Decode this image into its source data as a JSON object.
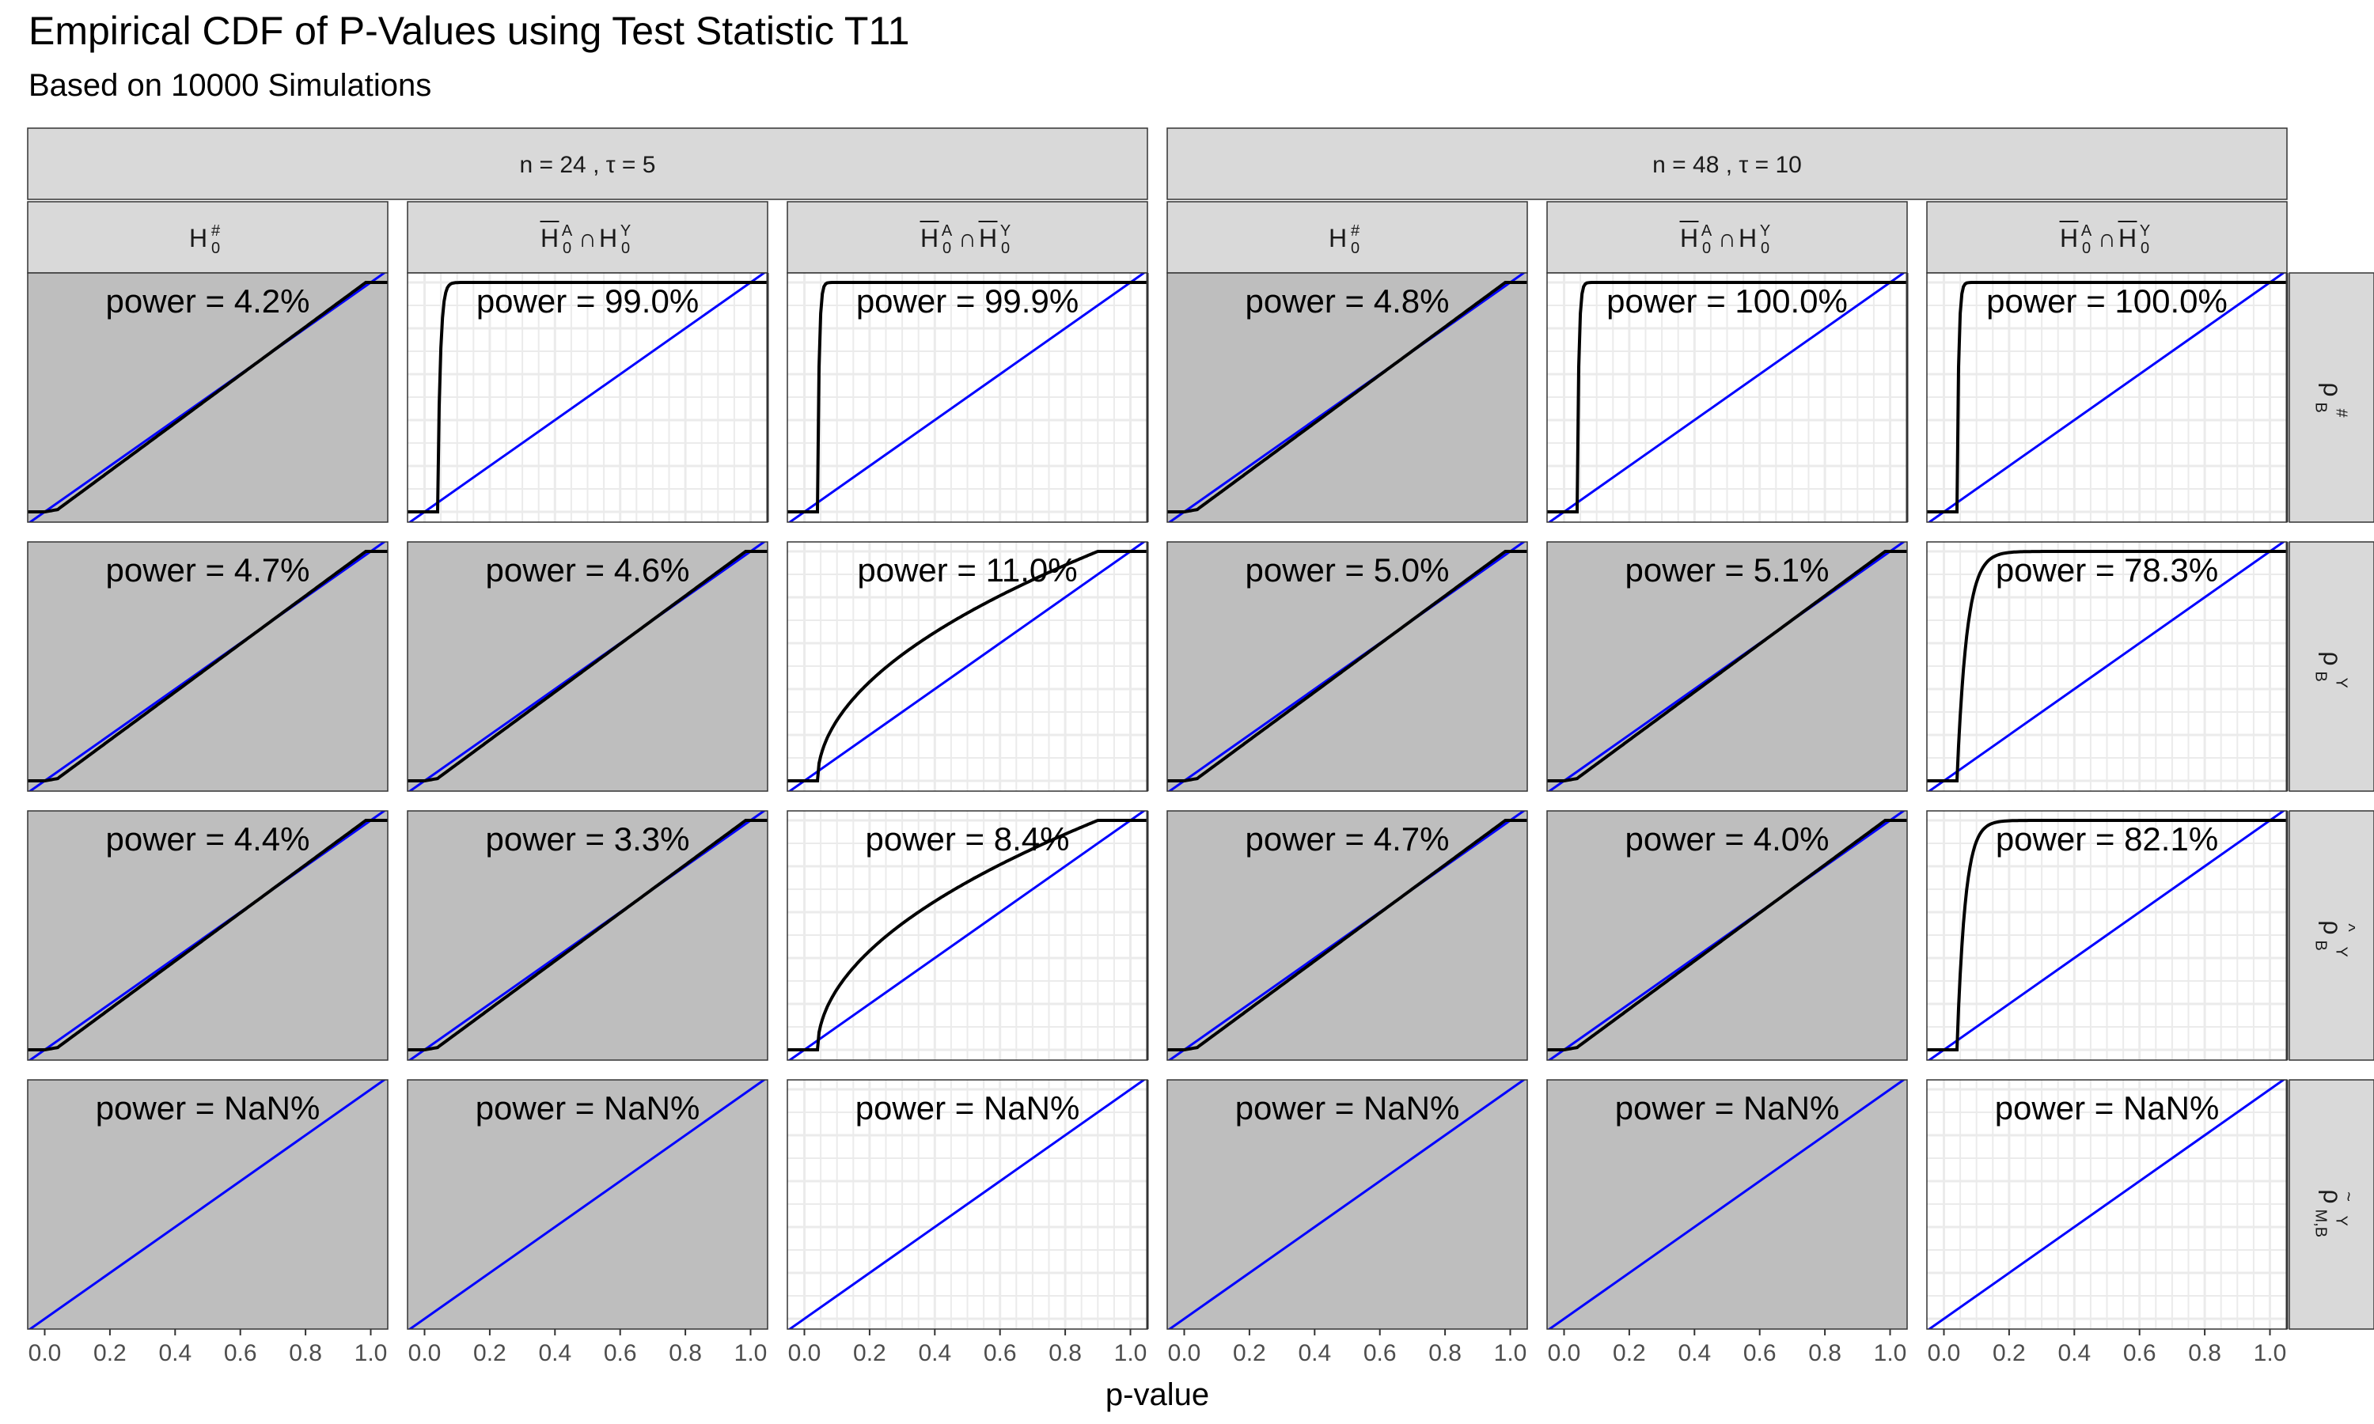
{
  "title": "Empirical CDF of P-Values using Test Statistic T11",
  "subtitle": "Based on 10000 Simulations",
  "colors": {
    "null_panel_bg": "#bebebe",
    "alt_panel_bg": "#ffffff",
    "grid": "#ebebeb",
    "strip_bg": "#d9d9d9",
    "ecdf_line": "#000000",
    "reference_line": "#0000ff"
  },
  "chart_data": {
    "type": "line",
    "xlabel": "p-value",
    "ylabel": "",
    "xlim": [
      0,
      1
    ],
    "ylim": [
      0,
      1
    ],
    "x_ticks": [
      "0.0",
      "0.2",
      "0.4",
      "0.6",
      "0.8",
      "1.0"
    ],
    "reference_line": "y = x",
    "outer_columns": [
      {
        "label": "n = 24 , τ = 5"
      },
      {
        "label": "n = 48 , τ = 10"
      }
    ],
    "hypothesis_columns": [
      {
        "label": "H",
        "hat": false,
        "sup": "#",
        "sub": "0"
      },
      {
        "label": "HA0∩HY0",
        "overlines": [
          "A"
        ]
      },
      {
        "label": "HA0∩HY0",
        "overlines": [
          "A",
          "Y"
        ]
      }
    ],
    "rows": [
      {
        "label": "ρ",
        "sub": "B",
        "sup": "#",
        "accent": ""
      },
      {
        "label": "ρ",
        "sub": "B",
        "sup": "Y",
        "accent": ""
      },
      {
        "label": "ρ",
        "sub": "B",
        "sup": "Y",
        "accent": "^"
      },
      {
        "label": "ρ",
        "sub": "M,B",
        "sup": "Y",
        "accent": "~"
      }
    ],
    "panels": [
      {
        "row": 0,
        "col": 0,
        "shaded": true,
        "power": "power = 4.2%",
        "shape": "null",
        "k": 0.042
      },
      {
        "row": 0,
        "col": 1,
        "shaded": false,
        "power": "power = 99.0%",
        "shape": "steep",
        "k": 0.008
      },
      {
        "row": 0,
        "col": 2,
        "shaded": false,
        "power": "power = 99.9%",
        "shape": "steep",
        "k": 0.005
      },
      {
        "row": 0,
        "col": 3,
        "shaded": true,
        "power": "power = 4.8%",
        "shape": "null",
        "k": 0.048
      },
      {
        "row": 0,
        "col": 4,
        "shaded": false,
        "power": "power = 100.0%",
        "shape": "steep",
        "k": 0.005
      },
      {
        "row": 0,
        "col": 5,
        "shaded": false,
        "power": "power = 100.0%",
        "shape": "steep",
        "k": 0.005
      },
      {
        "row": 1,
        "col": 0,
        "shaded": true,
        "power": "power = 4.7%",
        "shape": "null",
        "k": 0.047
      },
      {
        "row": 1,
        "col": 1,
        "shaded": true,
        "power": "power = 4.6%",
        "shape": "null",
        "k": 0.046
      },
      {
        "row": 1,
        "col": 2,
        "shaded": false,
        "power": "power = 11.0%",
        "shape": "curve",
        "k": 0.45
      },
      {
        "row": 1,
        "col": 3,
        "shaded": true,
        "power": "power = 5.0%",
        "shape": "null",
        "k": 0.05
      },
      {
        "row": 1,
        "col": 4,
        "shaded": true,
        "power": "power = 5.1%",
        "shape": "null",
        "k": 0.051
      },
      {
        "row": 1,
        "col": 5,
        "shaded": false,
        "power": "power = 78.3%",
        "shape": "steep",
        "k": 0.03
      },
      {
        "row": 2,
        "col": 0,
        "shaded": true,
        "power": "power = 4.4%",
        "shape": "null",
        "k": 0.044
      },
      {
        "row": 2,
        "col": 1,
        "shaded": true,
        "power": "power = 3.3%",
        "shape": "null",
        "k": 0.033
      },
      {
        "row": 2,
        "col": 2,
        "shaded": false,
        "power": "power = 8.4%",
        "shape": "curve",
        "k": 0.4
      },
      {
        "row": 2,
        "col": 3,
        "shaded": true,
        "power": "power = 4.7%",
        "shape": "null",
        "k": 0.047
      },
      {
        "row": 2,
        "col": 4,
        "shaded": true,
        "power": "power = 4.0%",
        "shape": "null",
        "k": 0.04
      },
      {
        "row": 2,
        "col": 5,
        "shaded": false,
        "power": "power = 82.1%",
        "shape": "steep",
        "k": 0.025
      },
      {
        "row": 3,
        "col": 0,
        "shaded": true,
        "power": "power = NaN%",
        "shape": "none"
      },
      {
        "row": 3,
        "col": 1,
        "shaded": true,
        "power": "power = NaN%",
        "shape": "none"
      },
      {
        "row": 3,
        "col": 2,
        "shaded": false,
        "power": "power = NaN%",
        "shape": "none"
      },
      {
        "row": 3,
        "col": 3,
        "shaded": true,
        "power": "power = NaN%",
        "shape": "none"
      },
      {
        "row": 3,
        "col": 4,
        "shaded": true,
        "power": "power = NaN%",
        "shape": "none"
      },
      {
        "row": 3,
        "col": 5,
        "shaded": false,
        "power": "power = NaN%",
        "shape": "none"
      }
    ]
  }
}
